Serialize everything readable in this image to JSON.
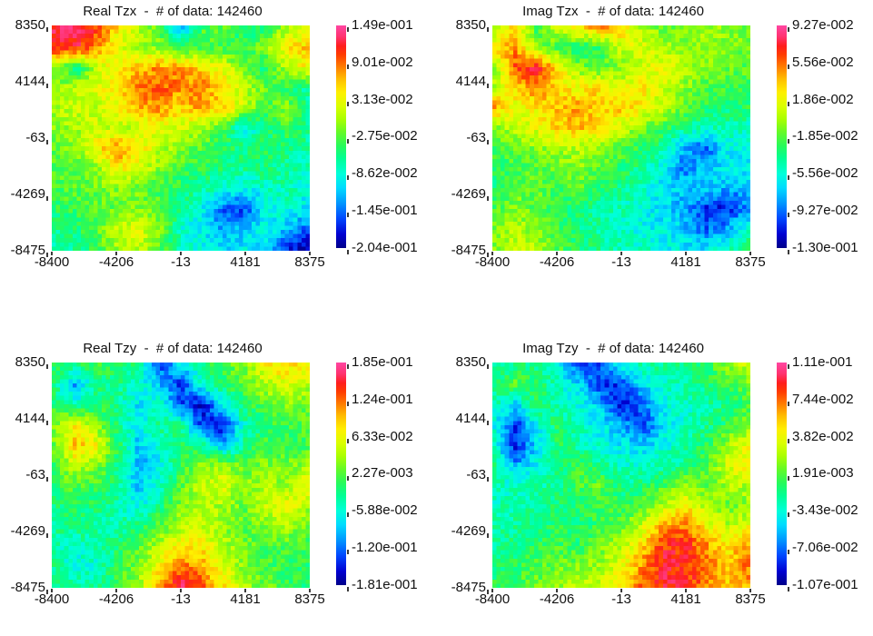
{
  "page": {
    "background": "#FFFFFF",
    "text_color": "#111111"
  },
  "chart_data": {
    "type": "heatmap",
    "layout": "2x2 grid of gridded map views, each with its own rainbow colorbar on the right",
    "grid_values": "normalized 0..1 fractions of each plot's [value_min..value_max]",
    "x_tick_labels": [
      "-8400",
      "-4206",
      "-13",
      "4181",
      "8375"
    ],
    "y_tick_labels": [
      "8350",
      "4144",
      "-63",
      "-4269",
      "-8475"
    ],
    "x_range": [
      -8400,
      8375
    ],
    "y_range": [
      -8475,
      8350
    ],
    "colormap_stops": [
      {
        "t": 0.0,
        "color": "#00008C"
      },
      {
        "t": 0.06,
        "color": "#0000D2"
      },
      {
        "t": 0.13,
        "color": "#0046FF"
      },
      {
        "t": 0.2,
        "color": "#0096FF"
      },
      {
        "t": 0.27,
        "color": "#00DCFF"
      },
      {
        "t": 0.33,
        "color": "#00FFDC"
      },
      {
        "t": 0.4,
        "color": "#00FF96"
      },
      {
        "t": 0.46,
        "color": "#28FA5A"
      },
      {
        "t": 0.52,
        "color": "#64FA28"
      },
      {
        "t": 0.58,
        "color": "#AAFF00"
      },
      {
        "t": 0.64,
        "color": "#DCFF00"
      },
      {
        "t": 0.7,
        "color": "#FFF000"
      },
      {
        "t": 0.76,
        "color": "#FFBE00"
      },
      {
        "t": 0.82,
        "color": "#FF7800"
      },
      {
        "t": 0.87,
        "color": "#FF3C00"
      },
      {
        "t": 0.91,
        "color": "#FF1E1E"
      },
      {
        "t": 0.95,
        "color": "#FF326E"
      },
      {
        "t": 1.0,
        "color": "#FF46A0"
      }
    ],
    "plots": [
      {
        "id": "real-tzx",
        "component": "Real Tzx",
        "n_data": 142460,
        "title_full": "Real Tzx  -  # of data: 142460",
        "value_min": -0.204,
        "value_max": 0.149,
        "colorbar_tick_labels": [
          "1.49e-001",
          "9.01e-002",
          "3.13e-002",
          "-2.75e-002",
          "-8.62e-002",
          "-1.45e-001",
          "-2.04e-001"
        ],
        "grid_normalized": [
          [
            0.95,
            0.93,
            0.88,
            0.72,
            0.6,
            0.5,
            0.22,
            0.48,
            0.52,
            0.42,
            0.45,
            0.58,
            0.62
          ],
          [
            0.9,
            0.92,
            0.8,
            0.65,
            0.58,
            0.55,
            0.45,
            0.5,
            0.48,
            0.45,
            0.55,
            0.7,
            0.75
          ],
          [
            0.58,
            0.38,
            0.62,
            0.68,
            0.75,
            0.8,
            0.78,
            0.72,
            0.65,
            0.55,
            0.42,
            0.6,
            0.68
          ],
          [
            0.55,
            0.6,
            0.65,
            0.7,
            0.82,
            0.85,
            0.8,
            0.82,
            0.7,
            0.6,
            0.52,
            0.45,
            0.38
          ],
          [
            0.58,
            0.62,
            0.6,
            0.68,
            0.75,
            0.8,
            0.72,
            0.78,
            0.72,
            0.62,
            0.48,
            0.55,
            0.42
          ],
          [
            0.55,
            0.58,
            0.62,
            0.6,
            0.62,
            0.65,
            0.62,
            0.58,
            0.48,
            0.3,
            0.4,
            0.48,
            0.4
          ],
          [
            0.52,
            0.55,
            0.68,
            0.8,
            0.72,
            0.6,
            0.55,
            0.5,
            0.45,
            0.42,
            0.45,
            0.42,
            0.38
          ],
          [
            0.5,
            0.52,
            0.55,
            0.7,
            0.65,
            0.55,
            0.48,
            0.45,
            0.42,
            0.4,
            0.42,
            0.4,
            0.35
          ],
          [
            0.48,
            0.5,
            0.52,
            0.55,
            0.52,
            0.48,
            0.45,
            0.4,
            0.35,
            0.3,
            0.35,
            0.38,
            0.32
          ],
          [
            0.45,
            0.48,
            0.5,
            0.52,
            0.55,
            0.5,
            0.4,
            0.32,
            0.15,
            0.12,
            0.3,
            0.35,
            0.28
          ],
          [
            0.4,
            0.42,
            0.5,
            0.62,
            0.65,
            0.55,
            0.35,
            0.3,
            0.2,
            0.25,
            0.32,
            0.25,
            0.15
          ],
          [
            0.38,
            0.4,
            0.48,
            0.58,
            0.6,
            0.5,
            0.38,
            0.32,
            0.28,
            0.3,
            0.28,
            0.1,
            0.04
          ]
        ]
      },
      {
        "id": "imag-tzx",
        "component": "Imag Tzx",
        "n_data": 142460,
        "title_full": "Imag Tzx  -  # of data: 142460",
        "value_min": -0.13,
        "value_max": 0.0927,
        "colorbar_tick_labels": [
          "9.27e-002",
          "5.56e-002",
          "1.86e-002",
          "-1.85e-002",
          "-5.56e-002",
          "-9.27e-002",
          "-1.30e-001"
        ],
        "grid_normalized": [
          [
            0.55,
            0.75,
            0.45,
            0.62,
            0.72,
            0.8,
            0.75,
            0.58,
            0.52,
            0.55,
            0.58,
            0.55,
            0.52
          ],
          [
            0.7,
            0.8,
            0.55,
            0.48,
            0.42,
            0.45,
            0.62,
            0.65,
            0.58,
            0.55,
            0.58,
            0.55,
            0.52
          ],
          [
            0.55,
            0.85,
            0.92,
            0.7,
            0.55,
            0.5,
            0.55,
            0.62,
            0.68,
            0.6,
            0.55,
            0.52,
            0.5
          ],
          [
            0.6,
            0.72,
            0.8,
            0.72,
            0.68,
            0.72,
            0.65,
            0.7,
            0.62,
            0.55,
            0.5,
            0.48,
            0.48
          ],
          [
            0.78,
            0.65,
            0.7,
            0.75,
            0.78,
            0.72,
            0.75,
            0.68,
            0.6,
            0.52,
            0.45,
            0.42,
            0.45
          ],
          [
            0.55,
            0.6,
            0.65,
            0.72,
            0.75,
            0.7,
            0.62,
            0.55,
            0.48,
            0.42,
            0.35,
            0.38,
            0.35
          ],
          [
            0.48,
            0.52,
            0.55,
            0.58,
            0.6,
            0.55,
            0.5,
            0.45,
            0.38,
            0.22,
            0.15,
            0.3,
            0.32
          ],
          [
            0.45,
            0.48,
            0.5,
            0.52,
            0.55,
            0.5,
            0.45,
            0.4,
            0.3,
            0.18,
            0.25,
            0.3,
            0.28
          ],
          [
            0.42,
            0.5,
            0.52,
            0.48,
            0.5,
            0.45,
            0.4,
            0.35,
            0.28,
            0.25,
            0.28,
            0.22,
            0.25
          ],
          [
            0.48,
            0.55,
            0.5,
            0.45,
            0.42,
            0.4,
            0.38,
            0.32,
            0.28,
            0.22,
            0.1,
            0.08,
            0.2
          ],
          [
            0.52,
            0.6,
            0.55,
            0.48,
            0.42,
            0.38,
            0.35,
            0.32,
            0.3,
            0.25,
            0.15,
            0.22,
            0.35
          ],
          [
            0.55,
            0.62,
            0.58,
            0.5,
            0.45,
            0.4,
            0.38,
            0.35,
            0.32,
            0.3,
            0.28,
            0.35,
            0.45
          ]
        ]
      },
      {
        "id": "real-tzy",
        "component": "Real Tzy",
        "n_data": 142460,
        "title_full": "Real Tzy  -  # of data: 142460",
        "value_min": -0.181,
        "value_max": 0.185,
        "colorbar_tick_labels": [
          "1.85e-001",
          "1.24e-001",
          "6.33e-002",
          "2.27e-003",
          "-5.88e-002",
          "-1.20e-001",
          "-1.81e-001"
        ],
        "grid_normalized": [
          [
            0.45,
            0.42,
            0.48,
            0.45,
            0.4,
            0.12,
            0.3,
            0.42,
            0.48,
            0.55,
            0.68,
            0.72,
            0.68
          ],
          [
            0.42,
            0.22,
            0.4,
            0.42,
            0.35,
            0.25,
            0.1,
            0.35,
            0.45,
            0.5,
            0.6,
            0.65,
            0.6
          ],
          [
            0.45,
            0.35,
            0.45,
            0.4,
            0.28,
            0.35,
            0.15,
            0.05,
            0.3,
            0.45,
            0.5,
            0.55,
            0.52
          ],
          [
            0.55,
            0.68,
            0.55,
            0.42,
            0.3,
            0.4,
            0.4,
            0.12,
            0.08,
            0.35,
            0.45,
            0.48,
            0.5
          ],
          [
            0.52,
            0.75,
            0.68,
            0.45,
            0.25,
            0.35,
            0.45,
            0.4,
            0.2,
            0.4,
            0.48,
            0.45,
            0.48
          ],
          [
            0.48,
            0.62,
            0.55,
            0.42,
            0.22,
            0.3,
            0.45,
            0.55,
            0.58,
            0.5,
            0.55,
            0.52,
            0.58
          ],
          [
            0.45,
            0.5,
            0.48,
            0.4,
            0.25,
            0.35,
            0.5,
            0.62,
            0.65,
            0.55,
            0.6,
            0.55,
            0.68
          ],
          [
            0.42,
            0.45,
            0.42,
            0.38,
            0.3,
            0.42,
            0.55,
            0.6,
            0.58,
            0.52,
            0.62,
            0.68,
            0.6
          ],
          [
            0.4,
            0.42,
            0.4,
            0.38,
            0.42,
            0.5,
            0.58,
            0.62,
            0.55,
            0.5,
            0.55,
            0.58,
            0.52
          ],
          [
            0.38,
            0.35,
            0.38,
            0.42,
            0.5,
            0.6,
            0.7,
            0.68,
            0.6,
            0.52,
            0.48,
            0.5,
            0.48
          ],
          [
            0.4,
            0.32,
            0.35,
            0.45,
            0.55,
            0.7,
            0.82,
            0.78,
            0.65,
            0.55,
            0.5,
            0.45,
            0.45
          ],
          [
            0.42,
            0.38,
            0.4,
            0.48,
            0.58,
            0.78,
            0.95,
            0.85,
            0.7,
            0.58,
            0.52,
            0.48,
            0.42
          ]
        ]
      },
      {
        "id": "imag-tzy",
        "component": "Imag Tzy",
        "n_data": 142460,
        "title_full": "Imag Tzy  -  # of data: 142460",
        "value_min": -0.107,
        "value_max": 0.111,
        "colorbar_tick_labels": [
          "1.11e-001",
          "7.44e-002",
          "3.82e-002",
          "1.91e-003",
          "-3.43e-002",
          "-7.06e-002",
          "-1.07e-001"
        ],
        "grid_normalized": [
          [
            0.38,
            0.42,
            0.4,
            0.35,
            0.1,
            0.15,
            0.32,
            0.38,
            0.4,
            0.42,
            0.45,
            0.55,
            0.62
          ],
          [
            0.4,
            0.52,
            0.45,
            0.35,
            0.28,
            0.1,
            0.12,
            0.28,
            0.35,
            0.38,
            0.42,
            0.48,
            0.52
          ],
          [
            0.38,
            0.25,
            0.45,
            0.38,
            0.32,
            0.25,
            0.08,
            0.15,
            0.32,
            0.35,
            0.38,
            0.42,
            0.48
          ],
          [
            0.32,
            0.1,
            0.3,
            0.45,
            0.35,
            0.3,
            0.22,
            0.12,
            0.28,
            0.35,
            0.4,
            0.45,
            0.55
          ],
          [
            0.35,
            0.08,
            0.28,
            0.45,
            0.38,
            0.33,
            0.3,
            0.25,
            0.32,
            0.38,
            0.45,
            0.58,
            0.65
          ],
          [
            0.4,
            0.22,
            0.32,
            0.42,
            0.48,
            0.4,
            0.35,
            0.35,
            0.38,
            0.42,
            0.5,
            0.62,
            0.72
          ],
          [
            0.38,
            0.35,
            0.38,
            0.4,
            0.48,
            0.52,
            0.4,
            0.42,
            0.48,
            0.55,
            0.52,
            0.58,
            0.6
          ],
          [
            0.36,
            0.38,
            0.4,
            0.42,
            0.45,
            0.48,
            0.45,
            0.5,
            0.6,
            0.7,
            0.58,
            0.52,
            0.55
          ],
          [
            0.38,
            0.4,
            0.42,
            0.45,
            0.42,
            0.48,
            0.52,
            0.62,
            0.78,
            0.82,
            0.68,
            0.6,
            0.65
          ],
          [
            0.4,
            0.42,
            0.45,
            0.48,
            0.45,
            0.52,
            0.6,
            0.72,
            0.88,
            0.9,
            0.8,
            0.7,
            0.78
          ],
          [
            0.42,
            0.45,
            0.5,
            0.52,
            0.55,
            0.58,
            0.65,
            0.8,
            0.92,
            0.88,
            0.85,
            0.75,
            0.82
          ],
          [
            0.45,
            0.48,
            0.52,
            0.55,
            0.6,
            0.62,
            0.7,
            0.85,
            0.9,
            0.92,
            0.8,
            0.72,
            0.78
          ]
        ]
      }
    ]
  }
}
